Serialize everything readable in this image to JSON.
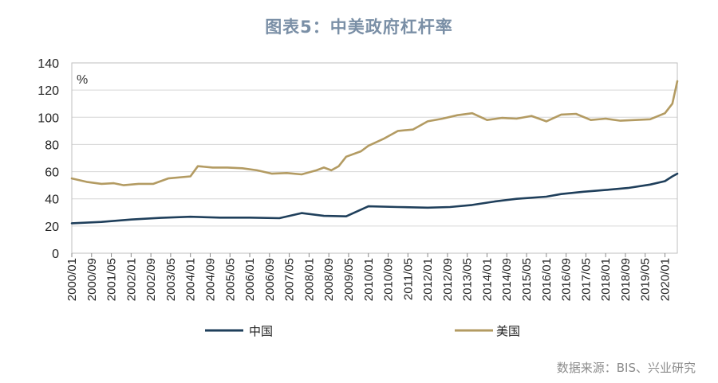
{
  "chart_data": {
    "type": "line",
    "title": "图表5：中美政府杠杆率",
    "unit_label": "%",
    "ylim": [
      0,
      140
    ],
    "yticks": [
      0,
      20,
      40,
      60,
      80,
      100,
      120,
      140
    ],
    "xticks": [
      "2000/01",
      "2000/09",
      "2001/05",
      "2002/01",
      "2002/09",
      "2003/05",
      "2004/01",
      "2004/09",
      "2005/05",
      "2006/01",
      "2006/09",
      "2007/05",
      "2008/01",
      "2008/09",
      "2009/05",
      "2010/01",
      "2010/09",
      "2011/05",
      "2012/01",
      "2012/09",
      "2013/05",
      "2014/01",
      "2014/09",
      "2015/05",
      "2016/01",
      "2016/09",
      "2017/05",
      "2018/01",
      "2018/09",
      "2019/05",
      "2020/01"
    ],
    "x_start": "2000/01",
    "x_end": "2020/06",
    "grid": true,
    "legend_position": "bottom",
    "source": "数据来源：BIS、兴业研究",
    "series": [
      {
        "name": "中国",
        "color": "#1f3f5b",
        "x": [
          "2000/01",
          "2001/01",
          "2002/01",
          "2003/01",
          "2004/01",
          "2005/01",
          "2006/01",
          "2007/01",
          "2007/10",
          "2008/07",
          "2009/04",
          "2010/01",
          "2011/01",
          "2012/01",
          "2012/10",
          "2013/07",
          "2014/04",
          "2015/01",
          "2016/01",
          "2016/07",
          "2017/04",
          "2018/01",
          "2018/10",
          "2019/07",
          "2020/01",
          "2020/04",
          "2020/06"
        ],
        "values": [
          22,
          23,
          24.8,
          26,
          26.8,
          26.2,
          26.2,
          25.8,
          29.5,
          27.5,
          27.1,
          34.5,
          34,
          33.5,
          34,
          35.5,
          38,
          40,
          41.6,
          43.5,
          45.2,
          46.5,
          48,
          50.5,
          53,
          56.5,
          58.5
        ]
      },
      {
        "name": "美国",
        "color": "#b39b62",
        "x": [
          "2000/01",
          "2000/07",
          "2001/01",
          "2001/06",
          "2001/10",
          "2002/04",
          "2002/10",
          "2003/04",
          "2004/01",
          "2004/04",
          "2004/10",
          "2005/04",
          "2005/10",
          "2006/04",
          "2006/10",
          "2007/04",
          "2007/10",
          "2008/04",
          "2008/07",
          "2008/10",
          "2009/01",
          "2009/04",
          "2009/10",
          "2010/01",
          "2010/07",
          "2011/01",
          "2011/07",
          "2012/01",
          "2012/07",
          "2013/01",
          "2013/07",
          "2014/01",
          "2014/07",
          "2015/01",
          "2015/07",
          "2016/01",
          "2016/07",
          "2017/01",
          "2017/07",
          "2018/01",
          "2018/07",
          "2019/01",
          "2019/07",
          "2020/01",
          "2020/04",
          "2020/06"
        ],
        "values": [
          55,
          52.5,
          51,
          51.5,
          50,
          51,
          51,
          55,
          56.5,
          64,
          63,
          63,
          62.5,
          61,
          58.5,
          59,
          58,
          61,
          63,
          61,
          64,
          71,
          75,
          79,
          84,
          90,
          91,
          97,
          99,
          101.5,
          103,
          98,
          99.5,
          99,
          101,
          97,
          102,
          102.5,
          98,
          99,
          97.5,
          98,
          98.5,
          103,
          110,
          126.5
        ]
      }
    ]
  }
}
